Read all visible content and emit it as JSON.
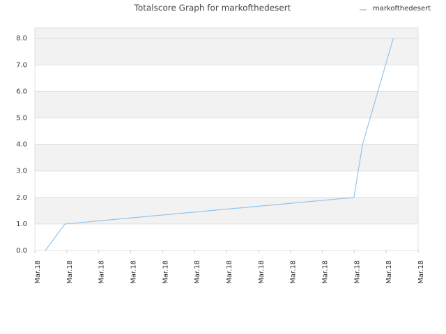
{
  "chart_data": {
    "type": "line",
    "title": "Totalscore Graph for markofthedesert",
    "x": [
      0.33,
      0.94,
      9.99,
      10.26,
      11.22
    ],
    "series": [
      {
        "name": "markofthedesert",
        "color": "#92c5ee",
        "values": [
          0,
          1,
          2,
          4,
          8
        ]
      }
    ],
    "xlim": [
      0,
      12
    ],
    "xticks": [
      {
        "value": 0,
        "label": "Mar.18"
      },
      {
        "value": 1,
        "label": "Mar.18"
      },
      {
        "value": 2,
        "label": "Mar.18"
      },
      {
        "value": 3,
        "label": "Mar.18"
      },
      {
        "value": 4,
        "label": "Mar.18"
      },
      {
        "value": 5,
        "label": "Mar.18"
      },
      {
        "value": 6,
        "label": "Mar.18"
      },
      {
        "value": 7,
        "label": "Mar.18"
      },
      {
        "value": 8,
        "label": "Mar.18"
      },
      {
        "value": 9,
        "label": "Mar.18"
      },
      {
        "value": 10,
        "label": "Mar.18"
      },
      {
        "value": 11,
        "label": "Mar.18"
      },
      {
        "value": 12,
        "label": "Mar.18"
      }
    ],
    "ylim": [
      0,
      8.4
    ],
    "yticks": [
      {
        "value": 0,
        "label": "0.0"
      },
      {
        "value": 1,
        "label": "1.0"
      },
      {
        "value": 2,
        "label": "2.0"
      },
      {
        "value": 3,
        "label": "3.0"
      },
      {
        "value": 4,
        "label": "4.0"
      },
      {
        "value": 5,
        "label": "5.0"
      },
      {
        "value": 6,
        "label": "6.0"
      },
      {
        "value": 7,
        "label": "7.0"
      },
      {
        "value": 8,
        "label": "8.0"
      }
    ],
    "grid": true,
    "legend": "top-right"
  }
}
